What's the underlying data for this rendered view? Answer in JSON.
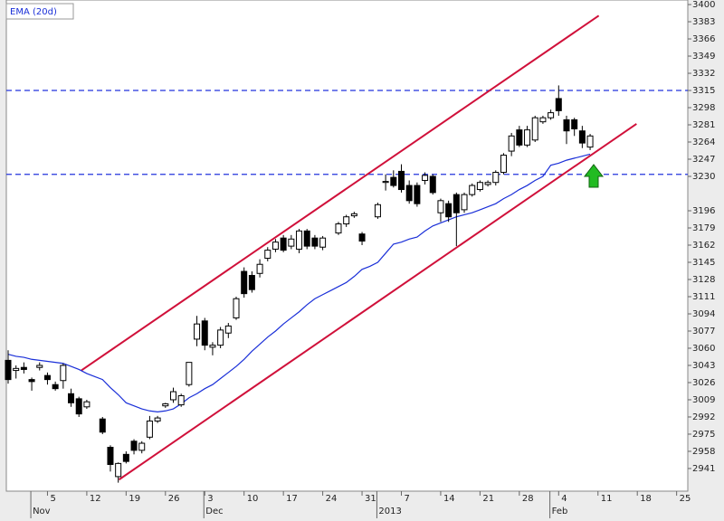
{
  "chart_data": {
    "type": "candlestick",
    "categories": [
      null,
      null,
      null,
      null,
      null,
      "5",
      null,
      null,
      null,
      null,
      "12",
      null,
      null,
      null,
      null,
      "19",
      null,
      null,
      null,
      null,
      "26",
      null,
      null,
      null,
      null,
      "3",
      null,
      null,
      null,
      null,
      "10",
      null,
      null,
      null,
      null,
      "17",
      null,
      null,
      null,
      null,
      "24",
      null,
      null,
      null,
      null,
      "31",
      null,
      null,
      null,
      null,
      "7",
      null,
      null,
      null,
      null,
      "14",
      null,
      null,
      null,
      null,
      "21",
      null,
      null,
      null,
      null,
      "28",
      null,
      null,
      null,
      null,
      "4",
      null,
      null,
      null,
      null,
      "11",
      null,
      null,
      null,
      null,
      "18",
      null,
      null,
      null,
      null,
      "25",
      null
    ],
    "category_periods": [
      null,
      null,
      null,
      "Nov",
      null,
      null,
      null,
      null,
      null,
      null,
      null,
      null,
      null,
      null,
      null,
      null,
      null,
      null,
      null,
      null,
      null,
      null,
      null,
      null,
      null,
      "Dec",
      null,
      null,
      null,
      null,
      null,
      null,
      null,
      null,
      null,
      null,
      null,
      null,
      null,
      null,
      null,
      null,
      null,
      null,
      null,
      null,
      null,
      "2013",
      null,
      null,
      null,
      null,
      null,
      null,
      null,
      null,
      null,
      null,
      null,
      null,
      null,
      null,
      null,
      null,
      null,
      null,
      null,
      null,
      null,
      "Feb",
      null,
      null,
      null,
      null,
      null,
      null,
      null,
      null,
      null,
      null,
      null,
      null,
      null,
      null,
      null,
      null,
      null
    ],
    "open": [
      3048,
      3038,
      3041,
      3029,
      3041,
      3033,
      3024,
      3028,
      3015,
      3010,
      3002,
      null,
      2990,
      2962,
      2933,
      2955,
      2968,
      2959,
      2972,
      2988,
      3003,
      3009,
      3004,
      3024,
      3069,
      3087,
      3061,
      3063,
      3075,
      3090,
      3136,
      3132,
      3134,
      3149,
      3158,
      3169,
      3161,
      3158,
      3176,
      3169,
      3160,
      null,
      3174,
      3183,
      3191,
      3173,
      null,
      3190,
      3224,
      3229,
      3235,
      3221,
      3221,
      3226,
      3230,
      3194,
      3203,
      3212,
      3197,
      3212,
      3217,
      3222,
      3224,
      3234,
      3255,
      3276,
      3261,
      3266,
      3284,
      3288,
      3307,
      3286,
      3286,
      3275,
      3259,
      null,
      null,
      null,
      null,
      null,
      null,
      null,
      null,
      null,
      null,
      null,
      null
    ],
    "high": [
      3058,
      3043,
      3046,
      3031,
      3046,
      3036,
      3027,
      3045,
      3020,
      3012,
      3009,
      null,
      2992,
      2964,
      2947,
      2958,
      2970,
      2968,
      2993,
      2993,
      3006,
      3021,
      3015,
      3046,
      3092,
      3090,
      3066,
      3081,
      3085,
      3111,
      3140,
      3136,
      3148,
      3160,
      3168,
      3172,
      3172,
      3178,
      3178,
      3172,
      3171,
      null,
      3185,
      3192,
      3195,
      3175,
      null,
      3204,
      3232,
      3236,
      3242,
      3226,
      3224,
      3234,
      3232,
      3208,
      3206,
      3214,
      3214,
      3223,
      3226,
      3226,
      3236,
      3253,
      3273,
      3280,
      3280,
      3290,
      3290,
      3296,
      3320,
      3290,
      3288,
      3280,
      3272,
      null,
      null,
      null,
      null,
      null,
      null,
      null,
      null,
      null,
      null,
      null,
      null
    ],
    "low": [
      3025,
      3030,
      3035,
      3018,
      3038,
      3024,
      3018,
      3020,
      3002,
      2992,
      3000,
      null,
      2975,
      2938,
      2927,
      2946,
      2955,
      2956,
      2970,
      2986,
      3001,
      3006,
      3002,
      3022,
      3062,
      3058,
      3053,
      3060,
      3070,
      3088,
      3110,
      3115,
      3130,
      3146,
      3155,
      3155,
      3158,
      3154,
      3158,
      3158,
      3157,
      null,
      3172,
      3180,
      3189,
      3162,
      null,
      3188,
      3216,
      3219,
      3214,
      3203,
      3200,
      3222,
      3212,
      3185,
      3185,
      3161,
      3194,
      3210,
      3215,
      3220,
      3221,
      3232,
      3250,
      3259,
      3259,
      3264,
      3282,
      3286,
      3290,
      3262,
      3270,
      3258,
      3256,
      null,
      null,
      null,
      null,
      null,
      null,
      null,
      null,
      null,
      null,
      null,
      null
    ],
    "close": [
      3029,
      3040,
      3039,
      3027,
      3043,
      3029,
      3020,
      3043,
      3006,
      2995,
      3007,
      null,
      2977,
      2945,
      2946,
      2948,
      2959,
      2966,
      2988,
      2991,
      3005,
      3017,
      3013,
      3046,
      3084,
      3063,
      3063,
      3078,
      3082,
      3109,
      3114,
      3118,
      3143,
      3157,
      3165,
      3157,
      3168,
      3176,
      3161,
      3161,
      3169,
      null,
      3183,
      3190,
      3193,
      3166,
      null,
      3202,
      3225,
      3221,
      3217,
      3206,
      3203,
      3231,
      3214,
      3206,
      3190,
      3194,
      3212,
      3221,
      3224,
      3224,
      3234,
      3251,
      3270,
      3261,
      3276,
      3288,
      3288,
      3293,
      3295,
      3275,
      3277,
      3263,
      3270,
      null,
      null,
      null,
      null,
      null,
      null,
      null,
      null,
      null,
      null,
      null,
      null
    ],
    "up_color": "#ffffff",
    "down_color": "#000000",
    "series": [
      {
        "name": "EMA (20d)",
        "color": "#1a2fd8",
        "values": [
          3054,
          3052,
          3051,
          3049,
          3048,
          3047,
          3046,
          3045,
          3042,
          3039,
          3035,
          3032,
          3029,
          3021,
          3014,
          3006,
          3003,
          3000,
          2998,
          2997,
          2998,
          3000,
          3005,
          3011,
          3015,
          3020,
          3024,
          3030,
          3036,
          3042,
          3049,
          3057,
          3064,
          3071,
          3077,
          3084,
          3090,
          3096,
          3103,
          3109,
          3113,
          3117,
          3121,
          3125,
          3131,
          3138,
          3141,
          3145,
          3154,
          3163,
          3165,
          3168,
          3170,
          3176,
          3181,
          3184,
          3187,
          3190,
          3192,
          3194,
          3197,
          3200,
          3203,
          3208,
          3212,
          3217,
          3221,
          3226,
          3230,
          3241,
          3243,
          3246,
          3248,
          3250,
          3252,
          null,
          null,
          null,
          null,
          null,
          null,
          null,
          null,
          null,
          null,
          null,
          null
        ]
      }
    ],
    "levels": {
      "color": "#2233dd",
      "values": [
        3315,
        3232
      ]
    },
    "trendlines": [
      {
        "color": "#d0103a",
        "x": [
          9.3,
          75.1
        ],
        "y": [
          3038,
          3389
        ]
      },
      {
        "color": "#d0103a",
        "x": [
          14.1,
          79.9
        ],
        "y": [
          2930,
          3282
        ]
      }
    ],
    "ylim": [
      2918.6,
      3404.5
    ],
    "yticks": [
      3400,
      3383,
      3366,
      3349,
      3332,
      3315,
      3298,
      3281,
      3264,
      3247,
      3230,
      3196,
      3179,
      3162,
      3145,
      3128,
      3111,
      3094,
      3077,
      3060,
      3043,
      3026,
      3009,
      2992,
      2975,
      2958,
      2941
    ]
  }
}
